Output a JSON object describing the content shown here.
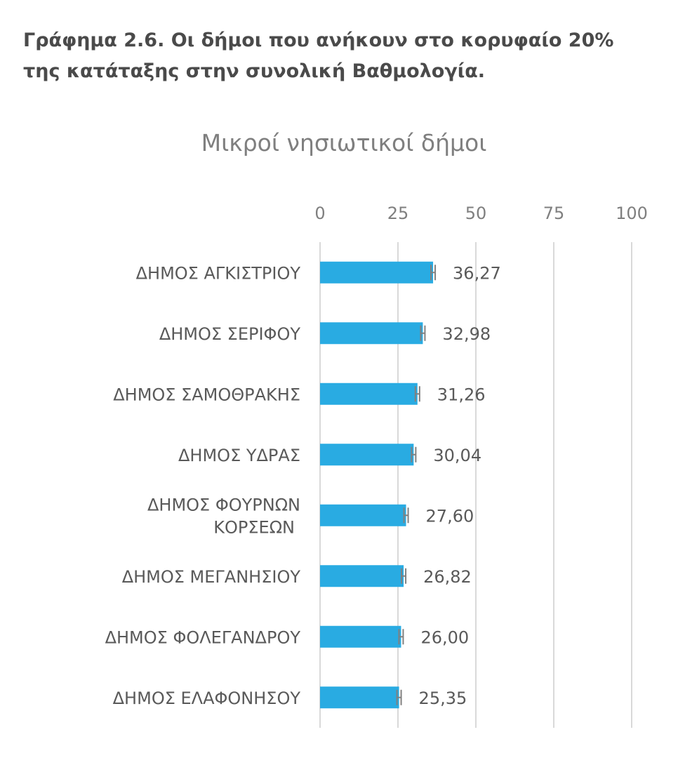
{
  "heading": {
    "line1": "Γράφημα 2.6. Οι δήμοι που ανήκουν στο κορυφαίο 20%",
    "line2": "της κατάταξης στην συνολική Βαθμολογία."
  },
  "chart_data": {
    "type": "bar",
    "orientation": "horizontal",
    "title": "Μικροί νησιωτικοί δήμοι",
    "categories": [
      [
        "ΔΗΜΟΣ ΑΓΚΙΣΤΡΙΟΥ"
      ],
      [
        "ΔΗΜΟΣ ΣΕΡΙΦΟΥ"
      ],
      [
        "ΔΗΜΟΣ ΣΑΜΟΘΡΑΚΗΣ"
      ],
      [
        "ΔΗΜΟΣ ΥΔΡΑΣ"
      ],
      [
        "ΔΗΜΟΣ ΦΟΥΡΝΩΝ",
        "ΚΟΡΣΕΩΝ"
      ],
      [
        "ΔΗΜΟΣ ΜΕΓΑΝΗΣΙΟΥ"
      ],
      [
        "ΔΗΜΟΣ ΦΟΛΕΓΑΝΔΡΟΥ"
      ],
      [
        "ΔΗΜΟΣ ΕΛΑΦΟΝΗΣΟΥ"
      ]
    ],
    "values": [
      36.27,
      32.98,
      31.26,
      30.04,
      27.6,
      26.82,
      26.0,
      25.35
    ],
    "value_labels": [
      "36,27",
      "32,98",
      "31,26",
      "30,04",
      "27,60",
      "26,82",
      "26,00",
      "25,35"
    ],
    "xlim": [
      0,
      100
    ],
    "ticks": [
      0,
      25,
      50,
      75,
      100
    ],
    "tick_labels": [
      "0",
      "25",
      "50",
      "75",
      "100"
    ],
    "axis_position": "top",
    "grid": true,
    "error_bars": true,
    "colors": {
      "bar": "#29abe2",
      "grid": "#d9d9d9",
      "error": "#808080"
    }
  }
}
